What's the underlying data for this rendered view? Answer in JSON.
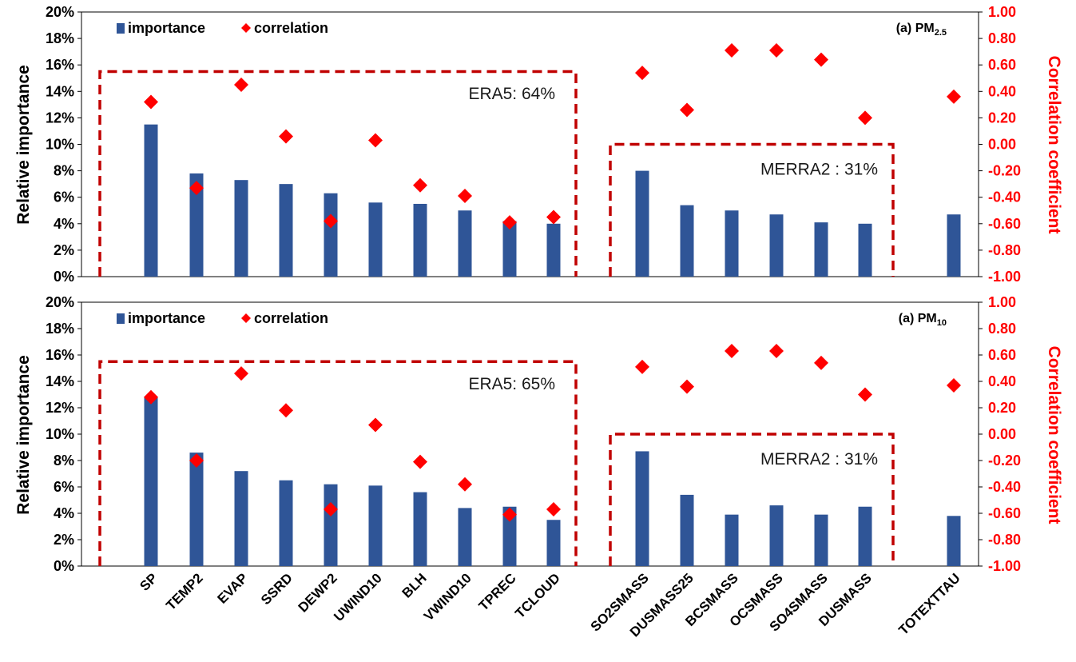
{
  "chart_data": {
    "type": "bar",
    "categories": [
      "SP",
      "TEMP2",
      "EVAP",
      "SSRD",
      "DEWP2",
      "UWIND10",
      "BLH",
      "VWIND10",
      "TPREC",
      "TCLOUD",
      "SO2SMASS",
      "DUSMASS25",
      "BCSMASS",
      "OCSMASS",
      "SO4SMASS",
      "DUSMASS",
      "TOTEXTTAU"
    ],
    "ylabel": "Relative importance",
    "y2label": "Correlation coefficient",
    "ylim": [
      0,
      20
    ],
    "y2lim": [
      -1,
      1
    ],
    "yticks": [
      "0%",
      "2%",
      "4%",
      "6%",
      "8%",
      "10%",
      "12%",
      "14%",
      "16%",
      "18%",
      "20%"
    ],
    "y2ticks": [
      "-1.00",
      "-0.80",
      "-0.60",
      "-0.40",
      "-0.20",
      "0.00",
      "0.20",
      "0.40",
      "0.60",
      "0.80",
      "1.00"
    ],
    "legend": [
      "importance",
      "correlation"
    ],
    "colors": {
      "importance": "#2f5597",
      "correlation": "#ff0000",
      "group_box": "#c00000"
    },
    "panels": [
      {
        "label_main": "(a) PM",
        "label_sub": "2.5",
        "groups": [
          {
            "label": "ERA5: 64%"
          },
          {
            "label": "MERRA2 : 31%"
          }
        ],
        "series": [
          {
            "name": "importance",
            "values": [
              11.5,
              7.8,
              7.3,
              7.0,
              6.3,
              5.6,
              5.5,
              5.0,
              4.2,
              4.0,
              8.0,
              5.4,
              5.0,
              4.7,
              4.1,
              4.0,
              4.7
            ]
          },
          {
            "name": "correlation",
            "values": [
              0.32,
              -0.33,
              0.45,
              0.06,
              -0.58,
              0.03,
              -0.31,
              -0.39,
              -0.59,
              -0.55,
              0.54,
              0.26,
              0.71,
              0.71,
              0.64,
              0.2,
              0.36
            ]
          }
        ]
      },
      {
        "label_main": "(a) PM",
        "label_sub": "10",
        "groups": [
          {
            "label": "ERA5: 65%"
          },
          {
            "label": "MERRA2 : 31%"
          }
        ],
        "series": [
          {
            "name": "importance",
            "values": [
              12.8,
              8.6,
              7.2,
              6.5,
              6.2,
              6.1,
              5.6,
              4.4,
              4.5,
              3.5,
              8.7,
              5.4,
              3.9,
              4.6,
              3.9,
              4.5,
              3.8
            ]
          },
          {
            "name": "correlation",
            "values": [
              0.28,
              -0.2,
              0.46,
              0.18,
              -0.57,
              0.07,
              -0.21,
              -0.38,
              -0.61,
              -0.57,
              0.51,
              0.36,
              0.63,
              0.63,
              0.54,
              0.3,
              0.37
            ]
          }
        ]
      }
    ]
  }
}
